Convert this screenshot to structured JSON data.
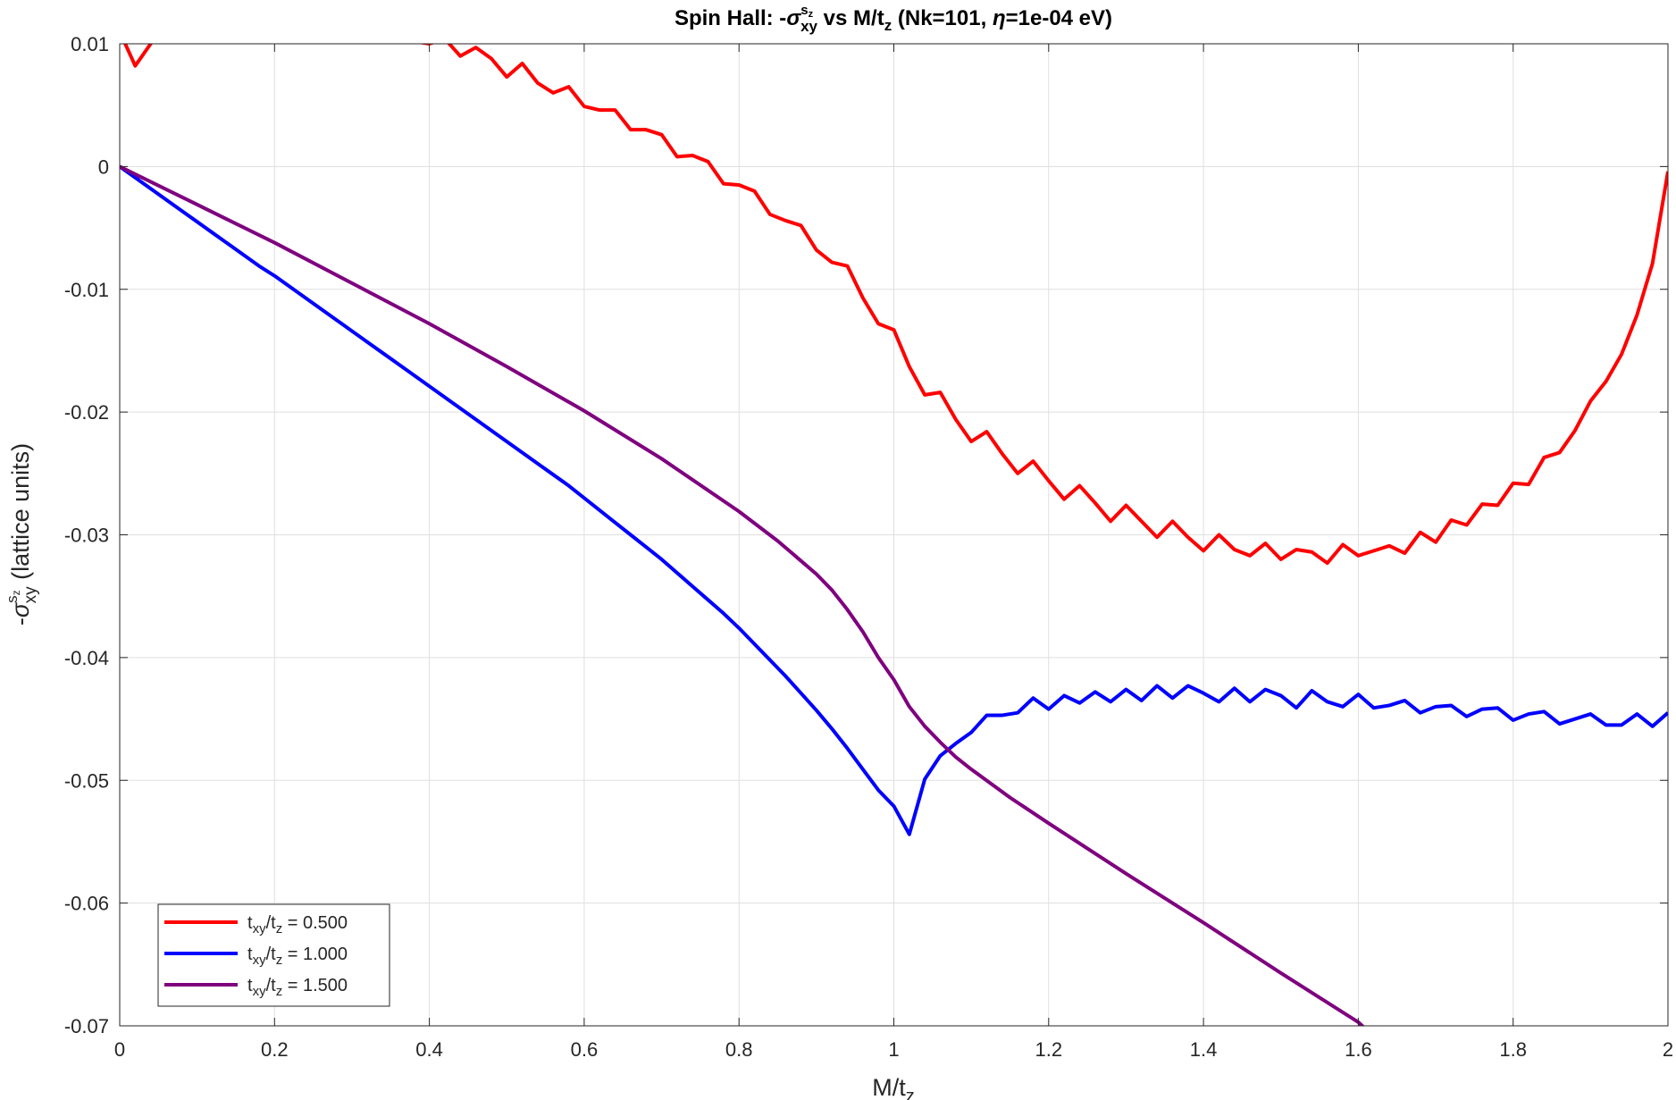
{
  "chart_data": {
    "type": "line",
    "title_parts": [
      "Spin  Hall:  -",
      "σ",
      "s",
      "z",
      "xy",
      "  vs  M/t",
      "z",
      "   (Nk=101,  ",
      "η",
      "=1e-04  eV)"
    ],
    "xlabel_parts": [
      "M/t",
      "z"
    ],
    "ylabel_parts": [
      "-",
      "σ",
      "s",
      "z",
      "xy",
      "  (lattice  units)"
    ],
    "xlim": [
      0,
      2
    ],
    "ylim": [
      -0.07,
      0.01
    ],
    "xticks": [
      0,
      0.2,
      0.4,
      0.6,
      0.8,
      1,
      1.2,
      1.4,
      1.6,
      1.8,
      2
    ],
    "xtick_labels": [
      "0",
      "0.2",
      "0.4",
      "0.6",
      "0.8",
      "1",
      "1.2",
      "1.4",
      "1.6",
      "1.8",
      "2"
    ],
    "yticks": [
      -0.07,
      -0.06,
      -0.05,
      -0.04,
      -0.03,
      -0.02,
      -0.01,
      0,
      0.01
    ],
    "ytick_labels": [
      "-0.07",
      "-0.06",
      "-0.05",
      "-0.04",
      "-0.03",
      "-0.02",
      "-0.01",
      "0",
      "0.01"
    ],
    "grid": true,
    "legend_position": "bottom-left",
    "series": [
      {
        "legend_parts": [
          "t",
          "xy",
          "/t",
          "z",
          "  =  0.500"
        ],
        "color": "#ff0000",
        "x": [
          0,
          0.02,
          0.04,
          0.06,
          0.08,
          0.1,
          0.12,
          0.14,
          0.16,
          0.18,
          0.2,
          0.22,
          0.24,
          0.26,
          0.28,
          0.3,
          0.32,
          0.34,
          0.36,
          0.38,
          0.4,
          0.42,
          0.44,
          0.46,
          0.48,
          0.5,
          0.52,
          0.54,
          0.56,
          0.58,
          0.6,
          0.62,
          0.64,
          0.66,
          0.68,
          0.7,
          0.72,
          0.74,
          0.76,
          0.78,
          0.8,
          0.82,
          0.84,
          0.86,
          0.88,
          0.9,
          0.92,
          0.94,
          0.96,
          0.98,
          1.0,
          1.02,
          1.04,
          1.06,
          1.08,
          1.1,
          1.12,
          1.14,
          1.16,
          1.18,
          1.2,
          1.22,
          1.24,
          1.26,
          1.28,
          1.3,
          1.32,
          1.34,
          1.36,
          1.38,
          1.4,
          1.42,
          1.44,
          1.46,
          1.48,
          1.5,
          1.52,
          1.54,
          1.56,
          1.58,
          1.6,
          1.62,
          1.64,
          1.66,
          1.68,
          1.7,
          1.72,
          1.74,
          1.76,
          1.78,
          1.8,
          1.82,
          1.84,
          1.86,
          1.88,
          1.9,
          1.92,
          1.94,
          1.96,
          1.98,
          2.0
        ],
        "y": [
          0.011,
          0.0082,
          0.01,
          0.012,
          0.014,
          0.015,
          0.015,
          0.0145,
          0.014,
          0.013,
          0.0125,
          0.012,
          0.0118,
          0.0115,
          0.0112,
          0.011,
          0.0108,
          0.0106,
          0.0104,
          0.0102,
          0.01,
          0.0104,
          0.009,
          0.0097,
          0.0088,
          0.0073,
          0.0084,
          0.0068,
          0.006,
          0.0065,
          0.0049,
          0.0046,
          0.0046,
          0.003,
          0.003,
          0.0026,
          0.0008,
          0.0009,
          0.0004,
          -0.0014,
          -0.0015,
          -0.002,
          -0.0039,
          -0.0044,
          -0.0048,
          -0.0068,
          -0.0078,
          -0.0081,
          -0.0107,
          -0.0128,
          -0.0133,
          -0.0163,
          -0.0186,
          -0.0184,
          -0.0206,
          -0.0224,
          -0.0216,
          -0.0234,
          -0.025,
          -0.024,
          -0.0256,
          -0.0271,
          -0.026,
          -0.0274,
          -0.0289,
          -0.0276,
          -0.0289,
          -0.0302,
          -0.0289,
          -0.0302,
          -0.0313,
          -0.03,
          -0.0312,
          -0.0317,
          -0.0307,
          -0.032,
          -0.0312,
          -0.0314,
          -0.0323,
          -0.0308,
          -0.0317,
          -0.0313,
          -0.0309,
          -0.0315,
          -0.0298,
          -0.0306,
          -0.0288,
          -0.0292,
          -0.0275,
          -0.0276,
          -0.0258,
          -0.0259,
          -0.0237,
          -0.0233,
          -0.0215,
          -0.0191,
          -0.0175,
          -0.0153,
          -0.0121,
          -0.0079,
          -0.0004
        ]
      },
      {
        "legend_parts": [
          "t",
          "xy",
          "/t",
          "z",
          "  =  1.000"
        ],
        "color": "#0000ff",
        "x": [
          0,
          0.02,
          0.04,
          0.06,
          0.08,
          0.1,
          0.12,
          0.14,
          0.16,
          0.18,
          0.2,
          0.22,
          0.24,
          0.26,
          0.28,
          0.3,
          0.32,
          0.34,
          0.36,
          0.38,
          0.4,
          0.42,
          0.44,
          0.46,
          0.48,
          0.5,
          0.52,
          0.54,
          0.56,
          0.58,
          0.6,
          0.62,
          0.64,
          0.66,
          0.68,
          0.7,
          0.72,
          0.74,
          0.76,
          0.78,
          0.8,
          0.82,
          0.84,
          0.86,
          0.88,
          0.9,
          0.92,
          0.94,
          0.96,
          0.98,
          1.0,
          1.02,
          1.04,
          1.06,
          1.08,
          1.1,
          1.12,
          1.14,
          1.16,
          1.18,
          1.2,
          1.22,
          1.24,
          1.26,
          1.28,
          1.3,
          1.32,
          1.34,
          1.36,
          1.38,
          1.4,
          1.42,
          1.44,
          1.46,
          1.48,
          1.5,
          1.52,
          1.54,
          1.56,
          1.58,
          1.6,
          1.62,
          1.64,
          1.66,
          1.68,
          1.7,
          1.72,
          1.74,
          1.76,
          1.78,
          1.8,
          1.82,
          1.84,
          1.86,
          1.88,
          1.9,
          1.92,
          1.94,
          1.96,
          1.98,
          2.0
        ],
        "y": [
          0,
          -0.0009,
          -0.0018,
          -0.0027,
          -0.0036,
          -0.0045,
          -0.0054,
          -0.0063,
          -0.0072,
          -0.0081,
          -0.0089,
          -0.0098,
          -0.0107,
          -0.0116,
          -0.0125,
          -0.0134,
          -0.0143,
          -0.0152,
          -0.0161,
          -0.017,
          -0.0179,
          -0.0188,
          -0.0197,
          -0.0206,
          -0.0215,
          -0.0224,
          -0.0233,
          -0.0242,
          -0.0251,
          -0.026,
          -0.027,
          -0.028,
          -0.029,
          -0.03,
          -0.031,
          -0.032,
          -0.0331,
          -0.0342,
          -0.0353,
          -0.0364,
          -0.0376,
          -0.0389,
          -0.0402,
          -0.0415,
          -0.0429,
          -0.0443,
          -0.0458,
          -0.0474,
          -0.0491,
          -0.0508,
          -0.0521,
          -0.0544,
          -0.0499,
          -0.048,
          -0.047,
          -0.0461,
          -0.0447,
          -0.0447,
          -0.0445,
          -0.0433,
          -0.0442,
          -0.0431,
          -0.0437,
          -0.0428,
          -0.0436,
          -0.0426,
          -0.0435,
          -0.0423,
          -0.0433,
          -0.0423,
          -0.0429,
          -0.0436,
          -0.0425,
          -0.0436,
          -0.0426,
          -0.0431,
          -0.0441,
          -0.0427,
          -0.0436,
          -0.044,
          -0.043,
          -0.0441,
          -0.0439,
          -0.0435,
          -0.0445,
          -0.044,
          -0.0439,
          -0.0448,
          -0.0442,
          -0.0441,
          -0.0451,
          -0.0446,
          -0.0444,
          -0.0454,
          -0.045,
          -0.0446,
          -0.0455,
          -0.0455,
          -0.0446,
          -0.0456,
          -0.0445
        ]
      },
      {
        "legend_parts": [
          "t",
          "xy",
          "/t",
          "z",
          "  =  1.500"
        ],
        "color": "#7f007f",
        "x": [
          0,
          0.1,
          0.2,
          0.3,
          0.4,
          0.5,
          0.6,
          0.7,
          0.8,
          0.85,
          0.9,
          0.92,
          0.94,
          0.96,
          0.98,
          1.0,
          1.02,
          1.04,
          1.06,
          1.08,
          1.1,
          1.15,
          1.2,
          1.3,
          1.4,
          1.5,
          1.6,
          1.62
        ],
        "y": [
          0,
          -0.0031,
          -0.0062,
          -0.0095,
          -0.0128,
          -0.0163,
          -0.0199,
          -0.0238,
          -0.0281,
          -0.0305,
          -0.0332,
          -0.0345,
          -0.0361,
          -0.0379,
          -0.04,
          -0.0418,
          -0.044,
          -0.0456,
          -0.0469,
          -0.0481,
          -0.0491,
          -0.0514,
          -0.0535,
          -0.0576,
          -0.0616,
          -0.0657,
          -0.0697,
          -0.0709
        ]
      }
    ]
  }
}
